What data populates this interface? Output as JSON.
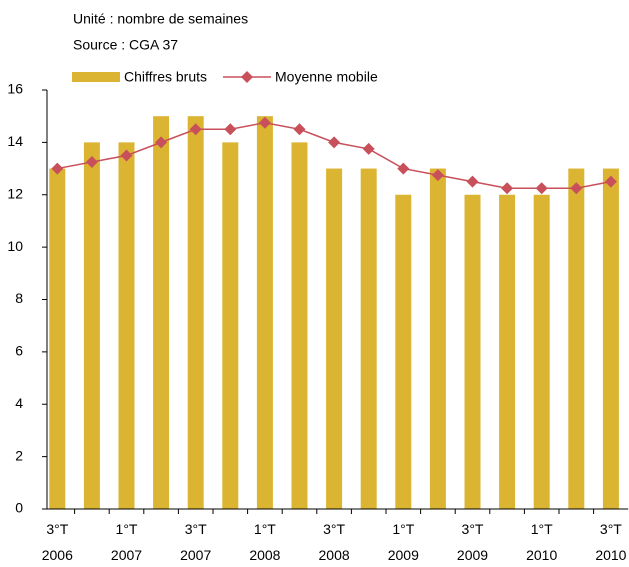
{
  "chart_data": {
    "type": "bar_line",
    "subtitle": "Unité : nombre de semaines",
    "source": "Source : CGA 37",
    "categories": [
      [
        "3°T",
        "2006"
      ],
      null,
      [
        "1°T",
        "2007"
      ],
      null,
      [
        "3°T",
        "2007"
      ],
      null,
      [
        "1°T",
        "2008"
      ],
      null,
      [
        "3°T",
        "2008"
      ],
      null,
      [
        "1°T",
        "2009"
      ],
      null,
      [
        "3°T",
        "2009"
      ],
      null,
      [
        "1°T",
        "2010"
      ],
      null,
      [
        "3°T",
        "2010"
      ]
    ],
    "series": [
      {
        "name": "Chiffres bruts",
        "type": "bar",
        "color": "#dbb532",
        "values": [
          13,
          14,
          14,
          15,
          15,
          14,
          15,
          14,
          13,
          13,
          12,
          13,
          12,
          12,
          12,
          13,
          13
        ]
      },
      {
        "name": "Moyenne mobile",
        "type": "line",
        "color": "#c8505a",
        "values": [
          13,
          13.25,
          13.5,
          14,
          14.5,
          14.5,
          14.75,
          14.5,
          14,
          13.75,
          13,
          12.75,
          12.5,
          12.25,
          12.25,
          12.25,
          12.5
        ]
      }
    ],
    "ylim": [
      0,
      16
    ],
    "yticks": [
      0,
      2,
      4,
      6,
      8,
      10,
      12,
      14,
      16
    ],
    "grid": false
  }
}
